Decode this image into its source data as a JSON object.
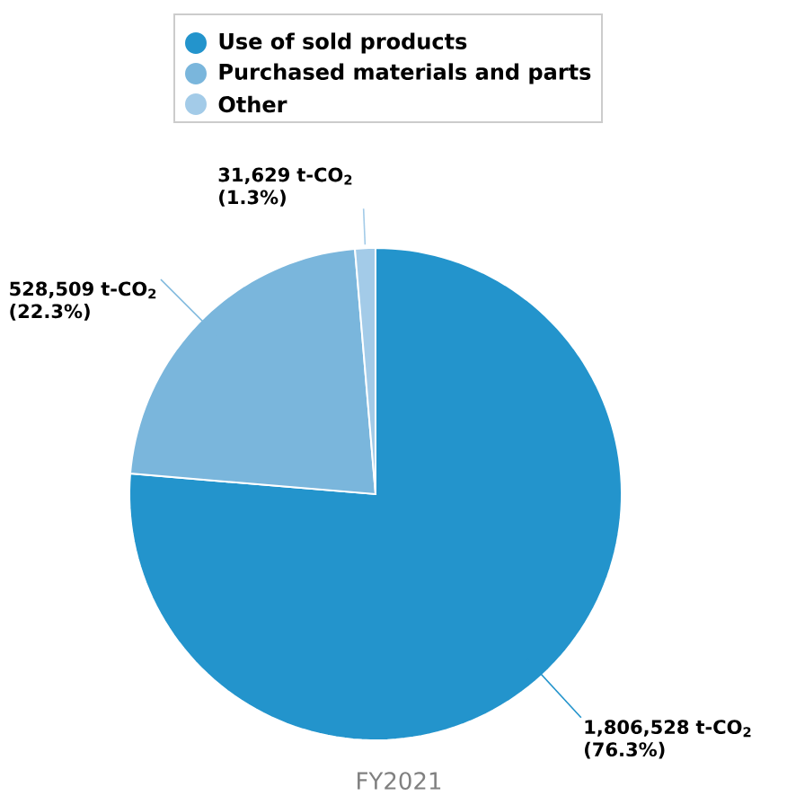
{
  "chart_data": {
    "type": "pie",
    "title": "FY2021",
    "categories": [
      "Use of sold products",
      "Purchased materials and parts",
      "Other"
    ],
    "values": [
      1806528,
      528509,
      31629
    ],
    "colors": [
      "#2394cc",
      "#7ab6dc",
      "#a3cbe8"
    ],
    "value_labels": [
      "1,806,528 t-CO$_{2}$",
      "528,509 t-CO$_{2}$",
      "31,629 t-CO$_{2}$"
    ],
    "annotations": [
      "(76.3%)",
      "(22.3%)",
      "(1.3%)"
    ],
    "legend": "top"
  }
}
